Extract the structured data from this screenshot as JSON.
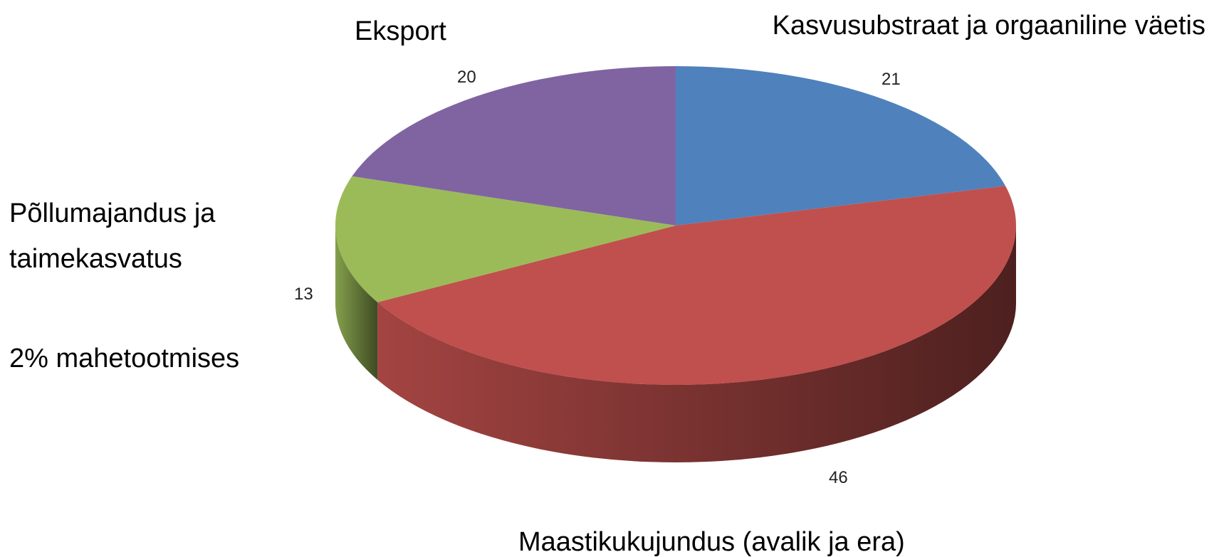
{
  "chart_data": {
    "type": "pie3d",
    "categories": [
      "Kasvusubstraat ja orgaaniline väetis",
      "Maastikukujundus (avalik ja era)",
      "Põllumajandus ja taimekasvatus",
      "Eksport"
    ],
    "values": [
      21,
      46,
      13,
      20
    ],
    "colors": [
      "#4f81bd",
      "#c0504d",
      "#9bbb59",
      "#8064a2"
    ],
    "annotation": "2% mahetootmises"
  }
}
